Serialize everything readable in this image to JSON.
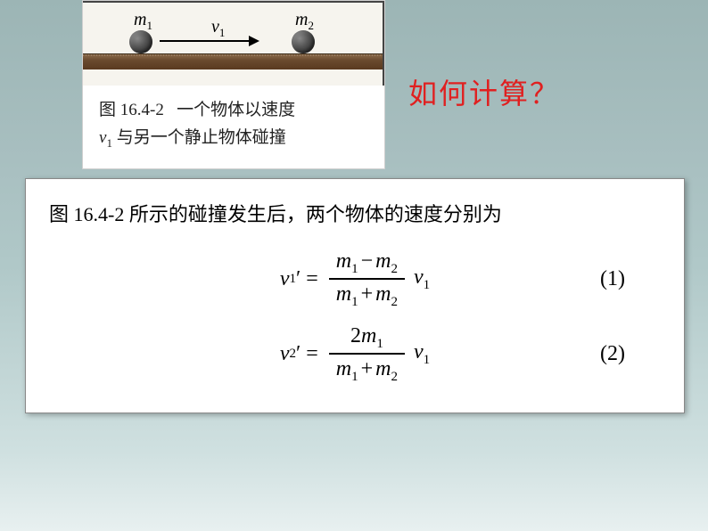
{
  "figure": {
    "labels": {
      "m1": "m",
      "m1_sub": "1",
      "m2": "m",
      "m2_sub": "2",
      "v1": "v",
      "v1_sub": "1"
    },
    "caption_prefix": "图 16.4-2",
    "caption_line1": "一个物体以速度",
    "caption_v": "v",
    "caption_v_sub": "1",
    "caption_line2": " 与另一个静止物体碰撞",
    "ball1_color": "#3a3a3a",
    "ball2_color": "#3a3a3a",
    "surface_color": "#6a4a2e"
  },
  "question_text": "如何计算？",
  "question_color": "#e02020",
  "intro_text": "图 16.4-2 所示的碰撞发生后，两个物体的速度分别为",
  "equations": {
    "eq1": {
      "lhs_var": "v",
      "lhs_sub": "1",
      "lhs_prime": "′",
      "num_a": "m",
      "num_a_sub": "1",
      "num_op": "−",
      "num_b": "m",
      "num_b_sub": "2",
      "den_a": "m",
      "den_a_sub": "1",
      "den_op": "+",
      "den_b": "m",
      "den_b_sub": "2",
      "trail_var": "v",
      "trail_sub": "1",
      "number": "(1)"
    },
    "eq2": {
      "lhs_var": "v",
      "lhs_sub": "2",
      "lhs_prime": "′",
      "num_coeff": "2",
      "num_a": "m",
      "num_a_sub": "1",
      "den_a": "m",
      "den_a_sub": "1",
      "den_op": "+",
      "den_b": "m",
      "den_b_sub": "2",
      "trail_var": "v",
      "trail_sub": "1",
      "number": "(2)"
    }
  },
  "colors": {
    "background_top": "#9cb5b5",
    "background_bottom": "#e8f0f0",
    "panel_bg": "#ffffff",
    "text": "#000000"
  },
  "typography": {
    "body_font": "SimSun",
    "math_font": "Times New Roman",
    "intro_fontsize": 22,
    "equation_fontsize": 24,
    "question_fontsize": 32
  }
}
